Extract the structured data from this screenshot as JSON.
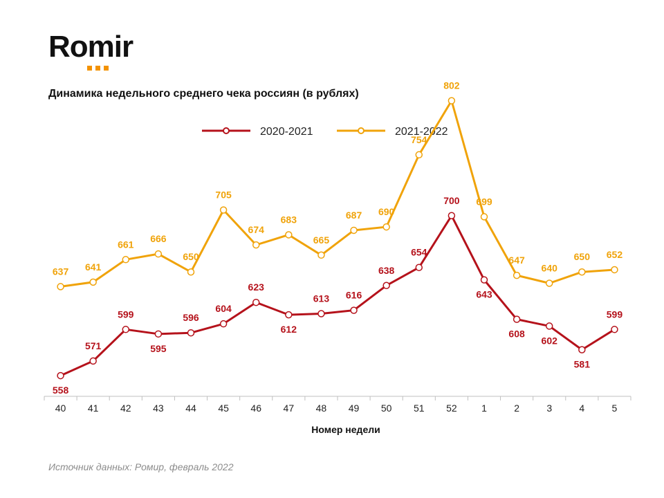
{
  "header": {
    "logo_text": "Romir",
    "title": "Динамика недельного среднего чека россиян (в рублях)"
  },
  "footer": {
    "source": "Источник данных: Ромир, февраль 2022"
  },
  "colors": {
    "accent": "#f39200",
    "series_2020_2021": "#b5121b",
    "series_2021_2022": "#f0a30a"
  },
  "chart_data": {
    "type": "line",
    "title": "Динамика недельного среднего чека россиян (в рублях)",
    "xlabel": "Номер недели",
    "ylabel": "",
    "categories": [
      "40",
      "41",
      "42",
      "43",
      "44",
      "45",
      "46",
      "47",
      "48",
      "49",
      "50",
      "51",
      "52",
      "1",
      "2",
      "3",
      "4",
      "5"
    ],
    "ylim": [
      520,
      830
    ],
    "grid": false,
    "legend_position": "top-center",
    "series": [
      {
        "name": "2020-2021",
        "color": "#b5121b",
        "values": [
          558,
          571,
          599,
          595,
          596,
          604,
          623,
          612,
          613,
          616,
          638,
          654,
          700,
          643,
          608,
          602,
          581,
          599
        ]
      },
      {
        "name": "2021-2022",
        "color": "#f0a30a",
        "values": [
          637,
          641,
          661,
          666,
          650,
          705,
          674,
          683,
          665,
          687,
          690,
          754,
          802,
          699,
          647,
          640,
          650,
          652
        ]
      }
    ]
  }
}
